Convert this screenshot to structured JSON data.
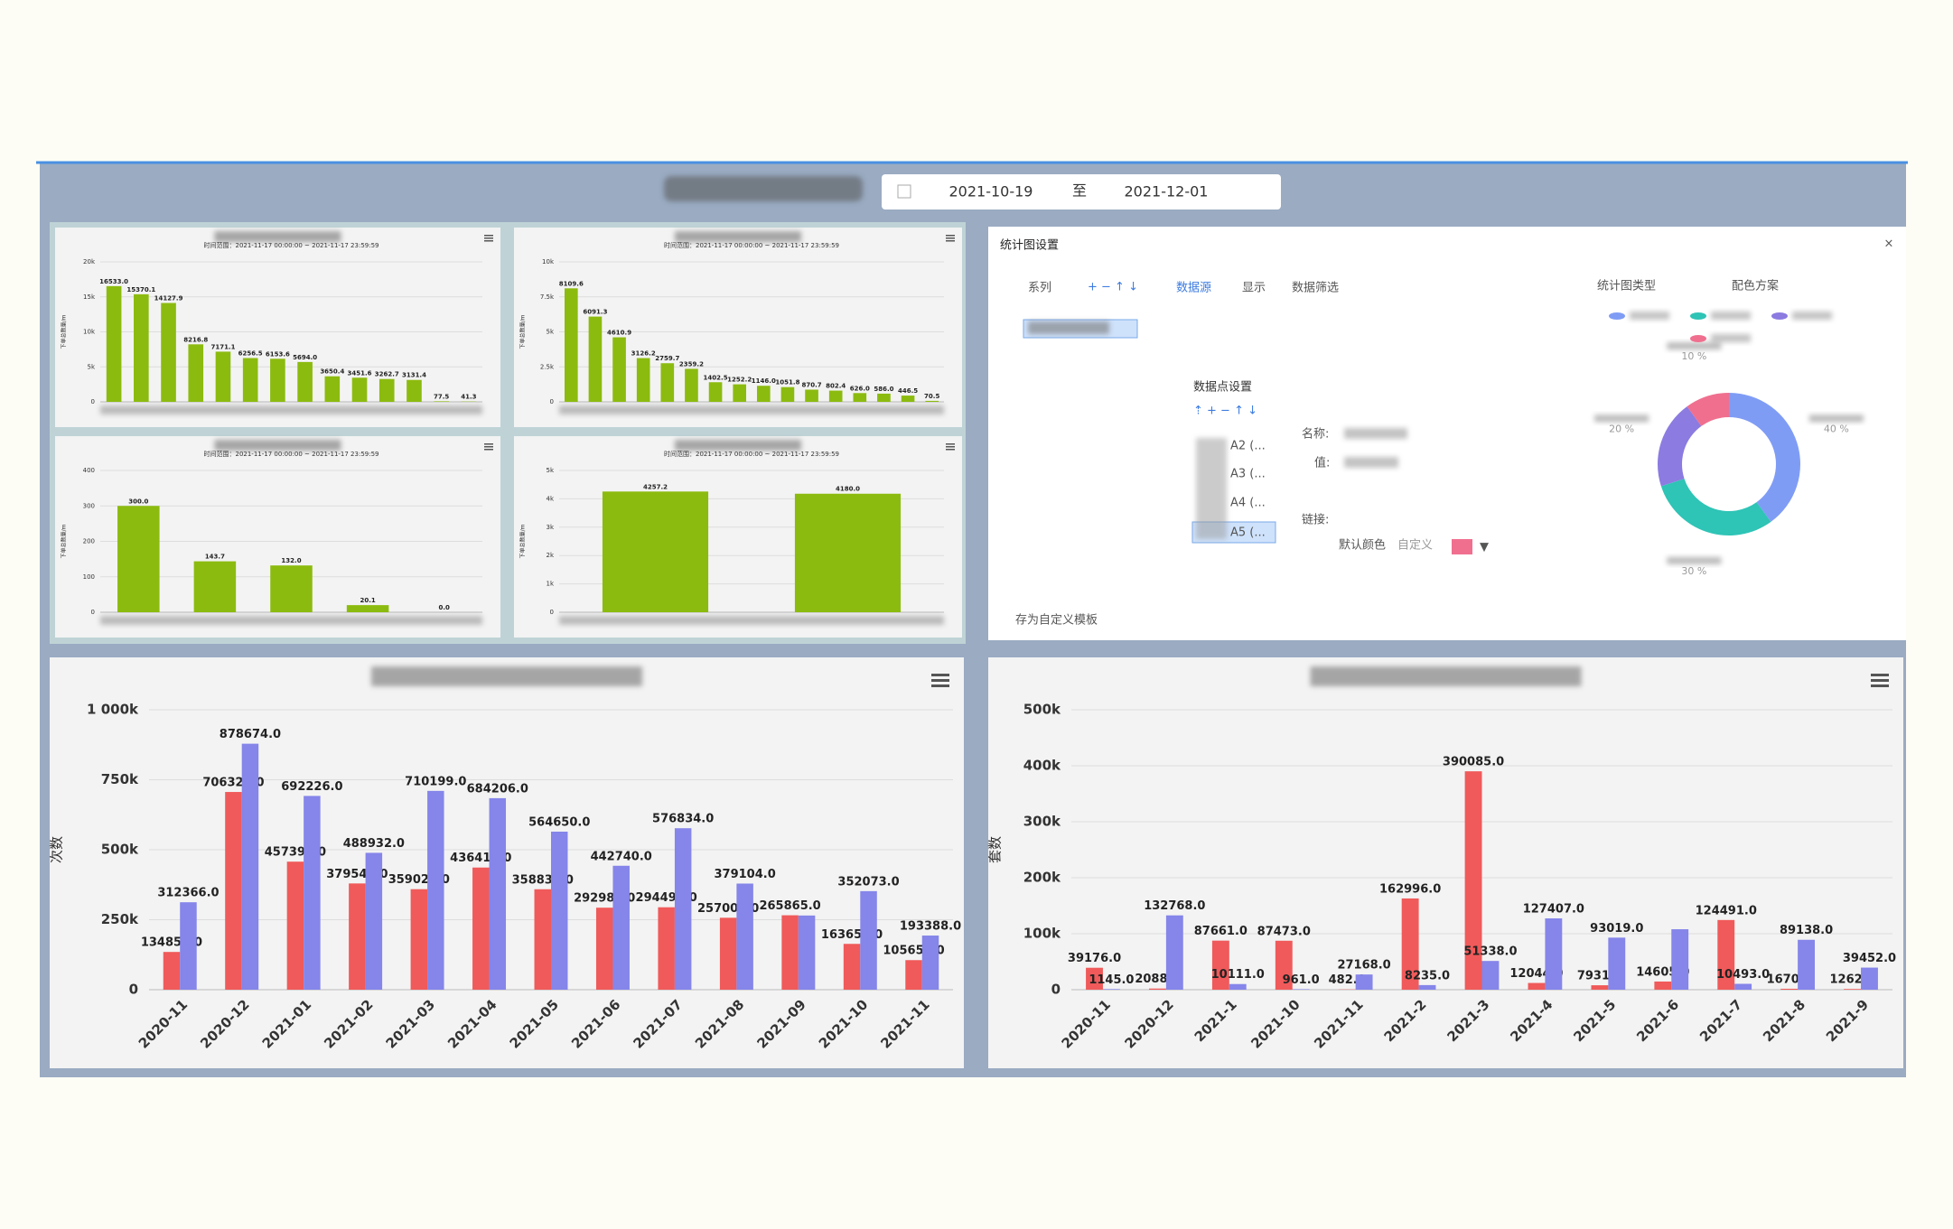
{
  "header": {
    "start": "2021-10-19",
    "separator": "至",
    "end": "2021-12-01"
  },
  "dialog": {
    "title": "统计图设置",
    "tabs": [
      "系列",
      "数据源",
      "显示",
      "数据筛选"
    ],
    "chart_type_label": "统计图类型",
    "color_scheme_label": "配色方案",
    "point_settings": "数据点设置",
    "points": [
      "A2 (...",
      "A3 (...",
      "A4 (...",
      "A5 (..."
    ],
    "fields": [
      "名称:",
      "值:",
      "链接:"
    ],
    "default_color": "默认颜色",
    "custom": "自定义",
    "save_template": "存为自定义模板"
  },
  "chart_data": [
    {
      "type": "bar",
      "subtitle": "时间范围：2021-11-17 00:00:00 ~ 2021-11-17 23:59:59",
      "y_label": "下单总数量/m",
      "categories": [
        null,
        null,
        null,
        null,
        null,
        null,
        null,
        null,
        null,
        null,
        null,
        null,
        null,
        null
      ],
      "values": [
        16533.0,
        15370.1,
        14127.9,
        8216.8,
        7171.1,
        6256.5,
        6153.6,
        5694.0,
        3650.4,
        3451.6,
        3262.7,
        3131.4,
        77.5,
        41.3
      ],
      "value_labels": [
        "16533.0",
        "15370.1",
        "14127.9",
        "8216.8",
        "7171.1",
        "6256.5",
        "6153.6",
        "5694.0",
        "3650.4",
        "3451.6",
        "3262.7",
        "3131.4",
        "77.5",
        "41.3"
      ],
      "color": "#8cbb0f",
      "ylim": [
        0,
        20000
      ],
      "yticks": [
        0,
        {
          "value": 5000,
          "label": "5k"
        },
        {
          "value": 10000,
          "label": "10k"
        },
        {
          "value": 15000,
          "label": "15k"
        },
        {
          "value": 20000,
          "label": "20k"
        }
      ]
    },
    {
      "type": "bar",
      "subtitle": "时间范围：2021-11-17 00:00:00 ~ 2021-11-17 23:59:59",
      "y_label": "下单总数量/m",
      "categories": [
        null,
        null,
        null,
        null,
        null,
        null,
        null,
        null,
        null,
        null,
        null,
        null,
        null,
        null,
        null,
        null
      ],
      "values": [
        8109.6,
        6091.3,
        4610.9,
        3126.2,
        2759.7,
        2359.2,
        1402.5,
        1252.2,
        1146.0,
        1051.8,
        870.7,
        802.4,
        626.0,
        586.0,
        446.5,
        70.5
      ],
      "value_labels": [
        "8109.6",
        "6091.3",
        "4610.9",
        "3126.2",
        "2759.7",
        "2359.2",
        "1402.5",
        "1252.2",
        "1146.0",
        "1051.8",
        "870.7",
        "802.4",
        "626.0",
        "586.0",
        "446.5",
        "70.5"
      ],
      "color": "#8cbb0f",
      "ylim": [
        0,
        10000
      ],
      "yticks": [
        0,
        {
          "value": 2500,
          "label": "2.5k"
        },
        {
          "value": 5000,
          "label": "5k"
        },
        {
          "value": 7500,
          "label": "7.5k"
        },
        {
          "value": 10000,
          "label": "10k"
        }
      ]
    },
    {
      "type": "bar",
      "subtitle": "时间范围：2021-11-17 00:00:00 ~ 2021-11-17 23:59:59",
      "y_label": "下单总数量/m",
      "categories": [
        null,
        null,
        null,
        null,
        null
      ],
      "values": [
        300.0,
        143.7,
        132.0,
        20.1,
        0.0
      ],
      "value_labels": [
        "300.0",
        "143.7",
        "132.0",
        "20.1",
        "0.0"
      ],
      "color": "#8cbb0f",
      "ylim": [
        0,
        400
      ],
      "yticks": [
        0,
        100,
        200,
        300,
        400
      ]
    },
    {
      "type": "bar",
      "subtitle": "时间范围：2021-11-17 00:00:00 ~ 2021-11-17 23:59:59",
      "y_label": "下单总数量/m",
      "categories": [
        null,
        null
      ],
      "values": [
        4257.2,
        4180.0
      ],
      "value_labels": [
        "4257.2",
        "4180.0"
      ],
      "color": "#8cbb0f",
      "ylim": [
        0,
        5000
      ],
      "yticks": [
        0,
        {
          "value": 1000,
          "label": "1k"
        },
        {
          "value": 2000,
          "label": "2k"
        },
        {
          "value": 3000,
          "label": "3k"
        },
        {
          "value": 4000,
          "label": "4k"
        },
        {
          "value": 5000,
          "label": "5k"
        }
      ]
    },
    {
      "type": "bar",
      "y_label": "次数",
      "categories": [
        "2020-11",
        "2020-12",
        "2021-01",
        "2021-02",
        "2021-03",
        "2021-04",
        "2021-05",
        "2021-06",
        "2021-07",
        "2021-08",
        "2021-09",
        "2021-10",
        "2021-11"
      ],
      "series": [
        {
          "color": "#f05a5a",
          "values": [
            134859.0,
            706329.0,
            457390.0,
            379546.0,
            359025.0,
            436410.0,
            358835.0,
            292982.0,
            294491.0,
            257006.0,
            265865.0,
            163659.0,
            105656.0
          ],
          "value_labels": [
            "134859.0",
            "706329.0",
            "457390.0",
            "379546.0",
            "359025.0",
            "436410.0",
            "358835.0",
            "292982.0",
            "294491.0",
            "257006.0",
            "265865.0",
            "163659.0",
            "105656.0"
          ]
        },
        {
          "color": "#8585ea",
          "values": [
            312366.0,
            878674.0,
            692226.0,
            488932.0,
            710199.0,
            684206.0,
            564650.0,
            442740.0,
            576834.0,
            379104.0,
            265000,
            352073.0,
            193388.0
          ],
          "value_labels": [
            "312366.0",
            "878674.0",
            "692226.0",
            "488932.0",
            "710199.0",
            "684206.0",
            "564650.0",
            "442740.0",
            "576834.0",
            "379104.0",
            null,
            "352073.0",
            "193388.0"
          ]
        }
      ],
      "ylim": [
        0,
        1000000
      ],
      "yticks": [
        0,
        {
          "value": 250000,
          "label": "250k"
        },
        {
          "value": 500000,
          "label": "500k"
        },
        {
          "value": 750000,
          "label": "750k"
        },
        {
          "value": 1000000,
          "label": "1 000k"
        }
      ]
    },
    {
      "type": "bar",
      "y_label": "套数",
      "categories": [
        "2020-11",
        "2020-12",
        "2021-1",
        "2021-10",
        "2021-11",
        "2021-2",
        "2021-3",
        "2021-4",
        "2021-5",
        "2021-6",
        "2021-7",
        "2021-8",
        "2021-9"
      ],
      "series": [
        {
          "color": "#f05a5a",
          "values": [
            39176.0,
            2088.0,
            87661.0,
            87473.0,
            482.0,
            162996.0,
            390085.0,
            12044.0,
            7931.0,
            14605.0,
            124491.0,
            1670.0,
            1262.0
          ],
          "value_labels": [
            "39176.0",
            "2088.0",
            "87661.0",
            "87473.0",
            "482.0",
            "162996.0",
            "390085.0",
            "12044.0",
            "7931.0",
            "14605.0",
            "124491.0",
            "1670.0",
            "1262.0"
          ]
        },
        {
          "color": "#8585ea",
          "values": [
            1145.0,
            132768.0,
            10111.0,
            961.0,
            27168.0,
            8235.0,
            51338.0,
            127407.0,
            93019.0,
            108000,
            10493.0,
            89138.0,
            39452.0
          ],
          "value_labels": [
            "1145.0",
            "132768.0",
            "10111.0",
            "961.0",
            "27168.0",
            "8235.0",
            "51338.0",
            "127407.0",
            "93019.0",
            null,
            "10493.0",
            "89138.0",
            "39452.0"
          ]
        }
      ],
      "ylim": [
        0,
        500000
      ],
      "yticks": [
        0,
        {
          "value": 100000,
          "label": "100k"
        },
        {
          "value": 200000,
          "label": "200k"
        },
        {
          "value": 300000,
          "label": "300k"
        },
        {
          "value": 400000,
          "label": "400k"
        },
        {
          "value": 500000,
          "label": "500k"
        }
      ]
    },
    {
      "type": "pie",
      "values": [
        40,
        30,
        20,
        10
      ],
      "value_labels": [
        "40 %",
        "30 %",
        "20 %",
        "10 %"
      ],
      "colors": [
        "#7f9cf5",
        "#2ec4b6",
        "#8c7be0",
        "#f06f8f"
      ]
    }
  ]
}
